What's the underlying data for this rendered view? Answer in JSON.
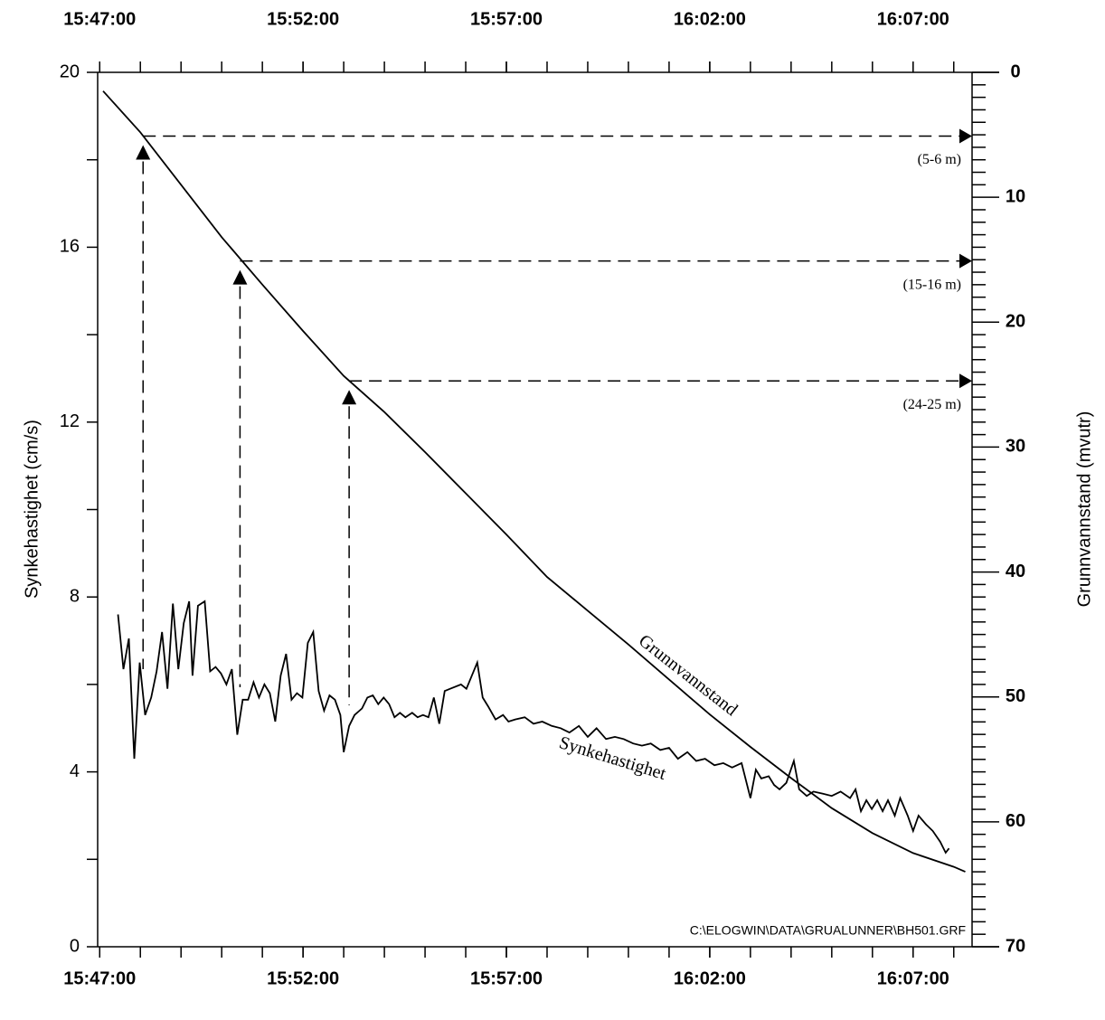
{
  "chart_data": {
    "type": "line",
    "y_label": "Synkehastighet (cm/s)",
    "y2_label": "Grunnvannstand (mvutr)",
    "footnote": "C:\\ELOGWIN\\DATA\\GRUALUNNER\\BH501.GRF",
    "xlim": [
      "15:46:57",
      "16:08:27"
    ],
    "xticks": [
      "15:47:00",
      "15:52:00",
      "15:57:00",
      "16:02:00",
      "16:07:00"
    ],
    "ylim": [
      0,
      20
    ],
    "yticks": [
      0,
      4,
      8,
      12,
      16,
      20
    ],
    "y2lim": [
      70,
      0
    ],
    "y2ticks": [
      0,
      10,
      20,
      30,
      40,
      50,
      60,
      70
    ],
    "series": [
      {
        "name": "Grunnvannstand",
        "color": "#000000",
        "axis": "y2",
        "x": [
          "15:47:05",
          "15:48:00",
          "15:49:00",
          "15:50:00",
          "15:51:00",
          "15:52:00",
          "15:53:00",
          "15:54:00",
          "15:55:00",
          "15:56:00",
          "15:57:00",
          "15:58:00",
          "15:59:00",
          "16:00:00",
          "16:01:00",
          "16:02:00",
          "16:03:00",
          "16:04:00",
          "16:05:00",
          "16:06:00",
          "16:07:00",
          "16:08:00",
          "16:08:17"
        ],
        "values": [
          1.5,
          4.8,
          9.0,
          13.2,
          17.0,
          20.7,
          24.3,
          27.2,
          30.4,
          33.7,
          37.0,
          40.4,
          43.1,
          45.8,
          48.6,
          51.4,
          54.0,
          56.5,
          58.9,
          60.9,
          62.5,
          63.6,
          64.0
        ]
      },
      {
        "name": "Synkehastighet",
        "color": "#000000",
        "x": [
          "15:47:27",
          "15:47:35",
          "15:47:43",
          "15:47:51",
          "15:47:59",
          "15:48:07",
          "15:48:16",
          "15:48:24",
          "15:48:32",
          "15:48:40",
          "15:48:48",
          "15:48:56",
          "15:49:04",
          "15:49:12",
          "15:49:17",
          "15:49:25",
          "15:49:35",
          "15:49:43",
          "15:49:51",
          "15:49:59",
          "15:50:07",
          "15:50:15",
          "15:50:23",
          "15:50:31",
          "15:50:39",
          "15:50:47",
          "15:50:55",
          "15:51:03",
          "15:51:11",
          "15:51:19",
          "15:51:27",
          "15:51:35",
          "15:51:43",
          "15:51:51",
          "15:51:59",
          "15:52:07",
          "15:52:15",
          "15:52:23",
          "15:52:31",
          "15:52:39",
          "15:52:47",
          "15:52:55",
          "15:53:00",
          "15:53:08",
          "15:53:16",
          "15:53:27",
          "15:53:35",
          "15:53:43",
          "15:53:51",
          "15:53:59",
          "15:54:07",
          "15:54:15",
          "15:54:23",
          "15:54:31",
          "15:54:41",
          "15:54:49",
          "15:54:57",
          "15:55:05",
          "15:55:13",
          "15:55:21",
          "15:55:29",
          "15:55:37",
          "15:55:53",
          "15:56:01",
          "15:56:09",
          "15:56:17",
          "15:56:25",
          "15:56:33",
          "15:56:44",
          "15:56:55",
          "15:57:03",
          "15:57:13",
          "15:57:27",
          "15:57:40",
          "15:57:53",
          "15:58:07",
          "15:58:20",
          "15:58:33",
          "15:58:47",
          "15:59:00",
          "15:59:13",
          "15:59:27",
          "15:59:40",
          "15:59:53",
          "16:00:07",
          "16:00:20",
          "16:00:33",
          "16:00:47",
          "16:01:00",
          "16:01:13",
          "16:01:27",
          "16:01:40",
          "16:01:53",
          "16:02:07",
          "16:02:20",
          "16:02:33",
          "16:02:47",
          "16:03:00",
          "16:03:08",
          "16:03:16",
          "16:03:27",
          "16:03:35",
          "16:03:43",
          "16:03:53",
          "16:04:04",
          "16:04:12",
          "16:04:23",
          "16:04:33",
          "16:04:47",
          "16:05:00",
          "16:05:13",
          "16:05:27",
          "16:05:35",
          "16:05:43",
          "16:05:51",
          "16:05:59",
          "16:06:07",
          "16:06:15",
          "16:06:23",
          "16:06:33",
          "16:06:41",
          "16:06:52",
          "16:07:00",
          "16:07:08",
          "16:07:19",
          "16:07:29",
          "16:07:40",
          "16:07:48",
          "16:07:53"
        ],
        "values": [
          7.6,
          6.35,
          7.05,
          4.3,
          6.5,
          5.3,
          5.7,
          6.3,
          7.2,
          5.9,
          7.85,
          6.35,
          7.4,
          7.9,
          6.2,
          7.8,
          7.9,
          6.3,
          6.4,
          6.25,
          6.0,
          6.35,
          4.85,
          5.65,
          5.65,
          6.05,
          5.7,
          6.0,
          5.8,
          5.15,
          6.2,
          6.7,
          5.65,
          5.8,
          5.7,
          6.95,
          7.2,
          5.85,
          5.4,
          5.75,
          5.65,
          5.3,
          4.45,
          5.05,
          5.3,
          5.45,
          5.7,
          5.75,
          5.55,
          5.7,
          5.55,
          5.25,
          5.35,
          5.25,
          5.35,
          5.25,
          5.3,
          5.25,
          5.7,
          5.1,
          5.85,
          5.9,
          6.0,
          5.9,
          6.2,
          6.5,
          5.7,
          5.5,
          5.2,
          5.3,
          5.15,
          5.2,
          5.25,
          5.1,
          5.15,
          5.05,
          5.0,
          4.9,
          5.05,
          4.8,
          5.0,
          4.75,
          4.8,
          4.75,
          4.65,
          4.6,
          4.65,
          4.5,
          4.55,
          4.3,
          4.45,
          4.25,
          4.3,
          4.15,
          4.2,
          4.1,
          4.2,
          3.4,
          4.05,
          3.85,
          3.9,
          3.7,
          3.6,
          3.75,
          4.25,
          3.6,
          3.45,
          3.55,
          3.5,
          3.45,
          3.55,
          3.4,
          3.6,
          3.1,
          3.35,
          3.15,
          3.35,
          3.1,
          3.35,
          3.0,
          3.4,
          3.0,
          2.65,
          3.0,
          2.8,
          2.65,
          2.4,
          2.15,
          2.25
        ]
      }
    ],
    "annotations": [
      {
        "text": "(5-6 m)",
        "x": "15:48:04",
        "y2": 5.1
      },
      {
        "text": "(15-16 m)",
        "x": "15:50:27",
        "y2": 15.1
      },
      {
        "text": "(24-25 m)",
        "x": "15:53:08",
        "y2": 24.7
      }
    ]
  }
}
